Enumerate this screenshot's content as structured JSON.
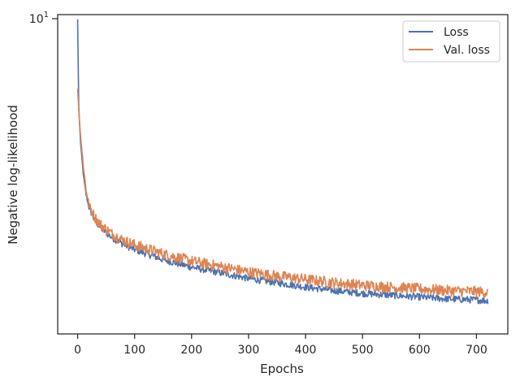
{
  "chart_data": {
    "type": "line",
    "xlabel": "Epochs",
    "ylabel": "Negative log-likelihood",
    "y_scale": "log",
    "xlim": [
      -35,
      755
    ],
    "ylim": [
      1.32,
      10.1
    ],
    "x_ticks": [
      0,
      100,
      200,
      300,
      400,
      500,
      600,
      700
    ],
    "x_tick_labels": [
      "0",
      "100",
      "200",
      "300",
      "400",
      "500",
      "600",
      "700"
    ],
    "y_tick_label": {
      "base": "10",
      "exp": "1"
    },
    "grid": false,
    "legend_position": "top-right",
    "series": [
      {
        "name": "Loss",
        "color": "#4c72b0",
        "points": [
          [
            0,
            9.8
          ],
          [
            2,
            5.6
          ],
          [
            5,
            4.5
          ],
          [
            10,
            3.65
          ],
          [
            15,
            3.2
          ],
          [
            20,
            2.95
          ],
          [
            30,
            2.72
          ],
          [
            40,
            2.6
          ],
          [
            60,
            2.44
          ],
          [
            80,
            2.34
          ],
          [
            100,
            2.26
          ],
          [
            150,
            2.12
          ],
          [
            200,
            2.02
          ],
          [
            250,
            1.95
          ],
          [
            300,
            1.88
          ],
          [
            350,
            1.83
          ],
          [
            400,
            1.78
          ],
          [
            450,
            1.74
          ],
          [
            500,
            1.71
          ],
          [
            550,
            1.69
          ],
          [
            600,
            1.67
          ],
          [
            650,
            1.65
          ],
          [
            700,
            1.64
          ],
          [
            720,
            1.63
          ]
        ]
      },
      {
        "name": "Val. loss",
        "color": "#dd8452",
        "points": [
          [
            0,
            6.3
          ],
          [
            2,
            5.5
          ],
          [
            5,
            4.7
          ],
          [
            10,
            3.85
          ],
          [
            15,
            3.3
          ],
          [
            20,
            3.0
          ],
          [
            30,
            2.78
          ],
          [
            40,
            2.65
          ],
          [
            60,
            2.5
          ],
          [
            80,
            2.4
          ],
          [
            100,
            2.33
          ],
          [
            150,
            2.2
          ],
          [
            200,
            2.1
          ],
          [
            250,
            2.03
          ],
          [
            300,
            1.96
          ],
          [
            350,
            1.91
          ],
          [
            400,
            1.87
          ],
          [
            450,
            1.83
          ],
          [
            500,
            1.8
          ],
          [
            550,
            1.78
          ],
          [
            600,
            1.76
          ],
          [
            650,
            1.74
          ],
          [
            700,
            1.73
          ],
          [
            720,
            1.72
          ]
        ]
      }
    ]
  }
}
